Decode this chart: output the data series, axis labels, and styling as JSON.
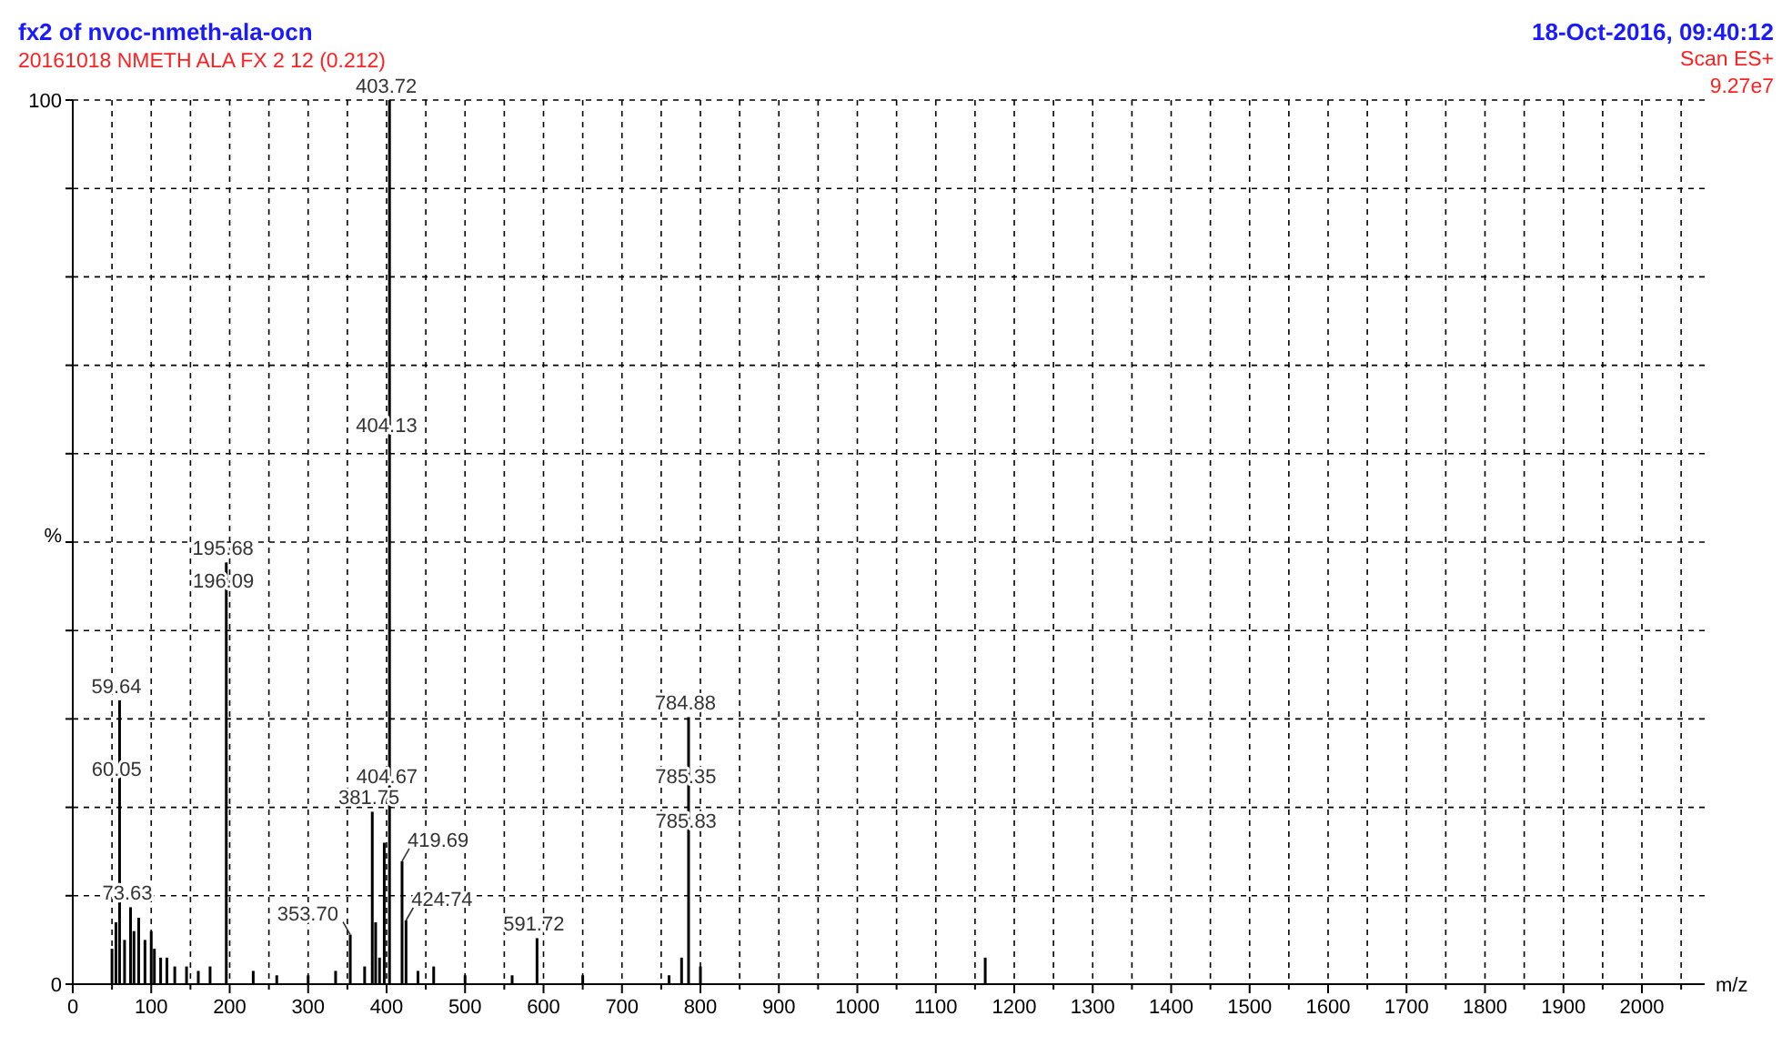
{
  "chart_data": {
    "type": "bar",
    "title": "fx2 of nvoc-nmeth-ala-ocn",
    "subtitle": "20161018 NMETH ALA FX 2 12 (0.212)",
    "xlabel": "m/z",
    "ylabel": "%",
    "x": [
      50,
      55,
      59.64,
      66,
      73.63,
      78,
      84,
      92,
      100,
      104,
      112,
      120,
      130,
      145,
      160,
      175,
      195.68,
      230,
      260,
      300,
      335,
      353.7,
      372,
      381.75,
      386,
      391,
      397,
      403.72,
      419.69,
      424.74,
      440,
      460,
      500,
      560,
      591.72,
      650,
      760,
      776,
      784.88,
      800,
      1163
    ],
    "series": [
      {
        "color": "#000000",
        "values": [
          4,
          7,
          32.1,
          5,
          8.7,
          6,
          7.5,
          5,
          6,
          4,
          3,
          3,
          2,
          2,
          1.5,
          2,
          47.7,
          1.5,
          1,
          1,
          1.5,
          5.6,
          2,
          19.5,
          7,
          3,
          16,
          100,
          13.9,
          7.2,
          1.5,
          2,
          1,
          1,
          5.2,
          1,
          1,
          3,
          30.2,
          2,
          3
        ]
      }
    ],
    "xlim": [
      0,
      2080
    ],
    "xticks": [
      0,
      {
        "value": 50,
        "label": null
      },
      100,
      {
        "value": 150,
        "label": null
      },
      200,
      {
        "value": 250,
        "label": null
      },
      300,
      {
        "value": 350,
        "label": null
      },
      400,
      {
        "value": 450,
        "label": null
      },
      500,
      {
        "value": 550,
        "label": null
      },
      600,
      {
        "value": 650,
        "label": null
      },
      700,
      {
        "value": 750,
        "label": null
      },
      800,
      {
        "value": 850,
        "label": null
      },
      900,
      {
        "value": 950,
        "label": null
      },
      1000,
      {
        "value": 1050,
        "label": null
      },
      1100,
      {
        "value": 1150,
        "label": null
      },
      1200,
      {
        "value": 1250,
        "label": null
      },
      1300,
      {
        "value": 1350,
        "label": null
      },
      1400,
      {
        "value": 1450,
        "label": null
      },
      1500,
      {
        "value": 1550,
        "label": null
      },
      1600,
      {
        "value": 1650,
        "label": null
      },
      1700,
      {
        "value": 1750,
        "label": null
      },
      1800,
      {
        "value": 1850,
        "label": null
      },
      1900,
      {
        "value": 1950,
        "label": null
      },
      2000,
      {
        "value": 2050,
        "label": null
      }
    ],
    "ylim": [
      0,
      100
    ],
    "yticks": [
      0,
      {
        "value": 10,
        "label": null
      },
      {
        "value": 20,
        "label": null
      },
      {
        "value": 30,
        "label": null
      },
      {
        "value": 40,
        "label": null
      },
      {
        "value": 50,
        "label": null
      },
      {
        "value": 60,
        "label": null
      },
      {
        "value": 70,
        "label": null
      },
      {
        "value": 80,
        "label": null
      },
      {
        "value": 90,
        "label": null
      },
      100
    ],
    "grid": true,
    "annotations": [
      "18-Oct-2016, 09:40:12",
      "Scan ES+",
      "9.27e7",
      {
        "text": "59.64",
        "x": 59.64,
        "y": 32.1
      },
      {
        "text": "60.05",
        "x": 60.05,
        "y": 22.7
      },
      {
        "text": "73.63",
        "x": 73.63,
        "y": 8.7
      },
      {
        "text": "195.68",
        "x": 195.68,
        "y": 47.7
      },
      {
        "text": "196.09",
        "x": 196.09,
        "y": 44
      },
      {
        "text": "353.70",
        "x": 353.7,
        "y": 5.6
      },
      {
        "text": "381.75",
        "x": 381.75,
        "y": 19.5
      },
      {
        "text": "403.72",
        "x": 403.72,
        "y": 100
      },
      {
        "text": "404.13",
        "x": 404.13,
        "y": 61.6
      },
      {
        "text": "404.67",
        "x": 404.67,
        "y": 21.9
      },
      {
        "text": "419.69",
        "x": 419.69,
        "y": 13.9
      },
      {
        "text": "424.74",
        "x": 424.74,
        "y": 7.2
      },
      {
        "text": "591.72",
        "x": 591.72,
        "y": 5.2
      },
      {
        "text": "784.88",
        "x": 784.88,
        "y": 30.2
      },
      {
        "text": "785.35",
        "x": 785.35,
        "y": 21.9
      },
      {
        "text": "785.83",
        "x": 785.83,
        "y": 16.9
      }
    ]
  }
}
